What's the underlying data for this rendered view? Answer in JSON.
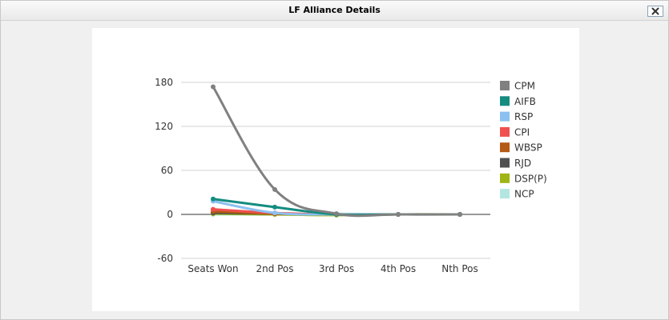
{
  "window": {
    "title": "LF Alliance Details",
    "close_icon": "close-icon"
  },
  "chart_data": {
    "type": "line",
    "categories": [
      "Seats Won",
      "2nd Pos",
      "3rd Pos",
      "4th Pos",
      "Nth Pos"
    ],
    "ylim": [
      -60,
      180
    ],
    "yticks": [
      180,
      120,
      60,
      0,
      -60
    ],
    "yticks_labels": [
      "180",
      "120",
      "60",
      "0",
      "-60"
    ],
    "grid": true,
    "legend_position": "right",
    "series": [
      {
        "name": "CPM",
        "color": "#808080",
        "values": [
          174,
          34,
          1,
          0,
          0
        ]
      },
      {
        "name": "AIFB",
        "color": "#148c80",
        "values": [
          21,
          10,
          0,
          0,
          0
        ]
      },
      {
        "name": "RSP",
        "color": "#8cc0f0",
        "values": [
          18,
          2,
          0,
          0,
          0
        ]
      },
      {
        "name": "CPI",
        "color": "#f05050",
        "values": [
          7,
          2,
          0,
          0,
          0
        ]
      },
      {
        "name": "WBSP",
        "color": "#b45a14",
        "values": [
          4,
          1,
          0,
          0,
          0
        ]
      },
      {
        "name": "RJD",
        "color": "#505050",
        "values": [
          2,
          1,
          0,
          0,
          0
        ]
      },
      {
        "name": "DSP(P)",
        "color": "#a0b414",
        "values": [
          1,
          0,
          -1,
          0,
          0
        ]
      },
      {
        "name": "NCP",
        "color": "#b4e6e1",
        "values": [
          0,
          0,
          1,
          0,
          0
        ]
      }
    ]
  }
}
